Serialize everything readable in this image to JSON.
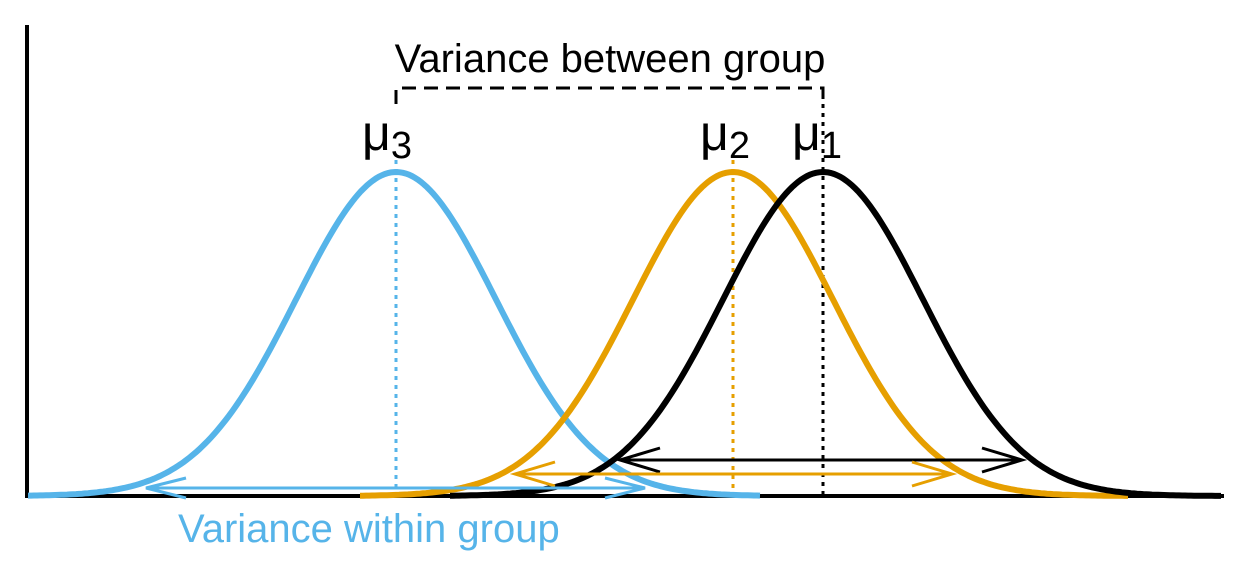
{
  "diagram": {
    "between_label": "Variance between group",
    "within_label": "Variance within group",
    "groups": [
      {
        "id": "g3",
        "mean_symbol": "μ",
        "mean_subscript": "3",
        "color": "#56b4e9"
      },
      {
        "id": "g2",
        "mean_symbol": "μ",
        "mean_subscript": "2",
        "color": "#e69f00"
      },
      {
        "id": "g1",
        "mean_symbol": "μ",
        "mean_subscript": "1",
        "color": "#000000"
      }
    ],
    "axis_color": "#000000"
  }
}
